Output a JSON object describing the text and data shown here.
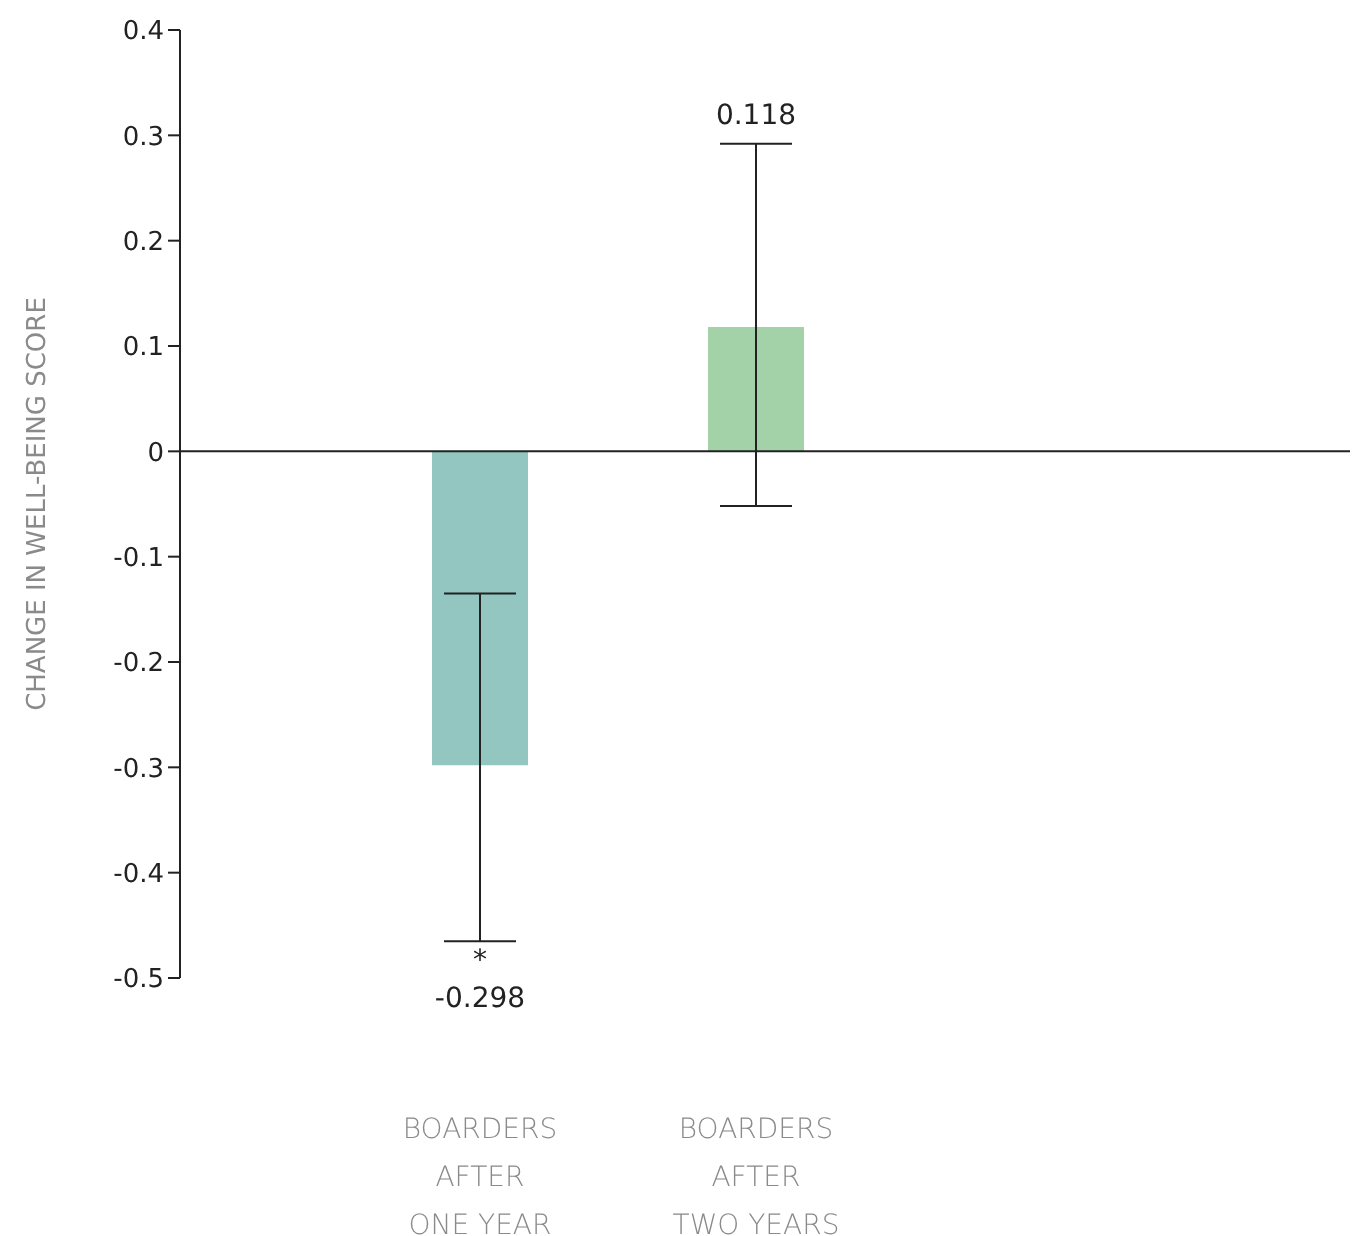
{
  "chart_data": {
    "type": "bar",
    "ylabel": "CHANGE IN WELL-BEING SCORE",
    "categories": [
      "BOARDERS\nAFTER\nONE YEAR",
      "BOARDERS\nAFTER\nTWO YEARS"
    ],
    "values": [
      -0.298,
      0.118
    ],
    "colors": [
      "#93c6c0",
      "#a3d1a8"
    ],
    "errors": [
      [
        -0.465,
        -0.135
      ],
      [
        -0.052,
        0.292
      ]
    ],
    "ref_lines": [
      {
        "axis": "y",
        "value": 0,
        "color": "#222222"
      }
    ],
    "annotations": [
      {
        "text": "*",
        "x": "BOARDERS\nAFTER\nONE YEAR",
        "y": -0.465
      },
      {
        "text": "-0.298",
        "x": "BOARDERS\nAFTER\nONE YEAR",
        "y": -0.465
      },
      {
        "text": "0.118",
        "x": "BOARDERS\nAFTER\nTWO YEARS",
        "y": 0.292
      }
    ],
    "ylim": [
      -0.5,
      0.4
    ],
    "yticks": [
      -0.5,
      -0.4,
      -0.3,
      -0.2,
      -0.1,
      0,
      0.1,
      0.2,
      0.3,
      0.4
    ],
    "grid": false,
    "legend": false
  }
}
